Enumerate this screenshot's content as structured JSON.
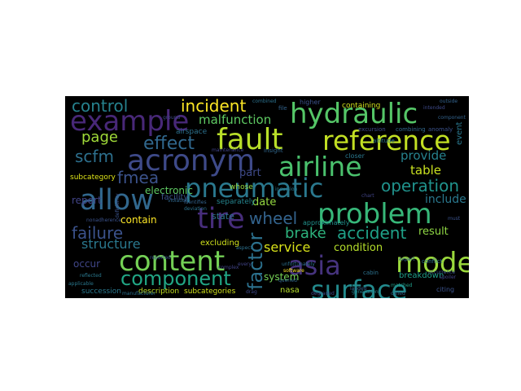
{
  "words": [
    {
      "text": "hydraulic",
      "color": "#55c667"
    },
    {
      "text": "fault",
      "color": "#b8de29"
    },
    {
      "text": "reference",
      "color": "#c2df23"
    },
    {
      "text": "example",
      "color": "#482878"
    },
    {
      "text": "acronym",
      "color": "#3e4a89"
    },
    {
      "text": "airline",
      "color": "#4ac16d"
    },
    {
      "text": "pneumatic",
      "color": "#2a788e"
    },
    {
      "text": "allow",
      "color": "#31688e"
    },
    {
      "text": "problem",
      "color": "#37b779"
    },
    {
      "text": "tire",
      "color": "#472d7b"
    },
    {
      "text": "content",
      "color": "#74d055"
    },
    {
      "text": "mode",
      "color": "#9bd93c"
    },
    {
      "text": "asia",
      "color": "#46337e"
    },
    {
      "text": "surface",
      "color": "#238a8d"
    },
    {
      "text": "component",
      "color": "#21a685"
    },
    {
      "text": "factor",
      "color": "#2c718e"
    },
    {
      "text": "incident",
      "color": "#fde725"
    },
    {
      "text": "control",
      "color": "#26828e"
    },
    {
      "text": "effect",
      "color": "#31688e"
    },
    {
      "text": "page",
      "color": "#a0da39"
    },
    {
      "text": "scfm",
      "color": "#2d708e"
    },
    {
      "text": "fmea",
      "color": "#3b528b"
    },
    {
      "text": "malfunction",
      "color": "#5ec962"
    },
    {
      "text": "operation",
      "color": "#20928c"
    },
    {
      "text": "wheel",
      "color": "#33638d"
    },
    {
      "text": "brake",
      "color": "#2db27d"
    },
    {
      "text": "accident",
      "color": "#1fa188"
    },
    {
      "text": "failure",
      "color": "#3b528b"
    },
    {
      "text": "structure",
      "color": "#2a788e"
    },
    {
      "text": "service",
      "color": "#d8e219"
    },
    {
      "text": "condition",
      "color": "#b5de2b"
    },
    {
      "text": "provide",
      "color": "#26828e"
    },
    {
      "text": "table",
      "color": "#c8e020"
    },
    {
      "text": "include",
      "color": "#2a788e"
    },
    {
      "text": "result",
      "color": "#8fd744"
    },
    {
      "text": "part",
      "color": "#3e4a89"
    },
    {
      "text": "date",
      "color": "#95d840"
    },
    {
      "text": "contain",
      "color": "#fde725"
    },
    {
      "text": "system",
      "color": "#75d054"
    },
    {
      "text": "occur",
      "color": "#404688"
    },
    {
      "text": "excluding",
      "color": "#d0e11c"
    },
    {
      "text": "nasa",
      "color": "#b5de2b"
    },
    {
      "text": "breakdown",
      "color": "#1f9e89"
    },
    {
      "text": "description",
      "color": "#c2df23"
    },
    {
      "text": "subcategories",
      "color": "#d0e11c"
    },
    {
      "text": "succession",
      "color": "#2a788e"
    },
    {
      "text": "electronic",
      "color": "#5ec962"
    },
    {
      "text": "state",
      "color": "#2c728e"
    },
    {
      "text": "report",
      "color": "#414487"
    },
    {
      "text": "facility",
      "color": "#3b528b"
    },
    {
      "text": "separately",
      "color": "#25848e"
    },
    {
      "text": "approximately",
      "color": "#21918c"
    },
    {
      "text": "containing",
      "color": "#d2e21b"
    },
    {
      "text": "event",
      "color": "#2a788e"
    },
    {
      "text": "subcategory",
      "color": "#dde318"
    },
    {
      "text": "airspace",
      "color": "#2c728e"
    },
    {
      "text": "whose",
      "color": "#95d840"
    },
    {
      "text": "insight",
      "color": "#31688e"
    },
    {
      "text": "closer",
      "color": "#2a788e"
    },
    {
      "text": "higher",
      "color": "#3b528b"
    },
    {
      "text": "file",
      "color": "#33638d"
    },
    {
      "text": "software",
      "color": "#fde725"
    },
    {
      "text": "unfortunately",
      "color": "#2c718e"
    },
    {
      "text": "queried",
      "color": "#31688e"
    },
    {
      "text": "citing",
      "color": "#3b528b"
    },
    {
      "text": "conflict",
      "color": "#2c728e"
    },
    {
      "text": "matched",
      "color": "#1f9e89"
    },
    {
      "text": "must",
      "color": "#3b528b"
    },
    {
      "text": "chart",
      "color": "#414487"
    },
    {
      "text": "reflected",
      "color": "#2a788e"
    },
    {
      "text": "violation",
      "color": "#31688e"
    },
    {
      "text": "deviation",
      "color": "#2c728e"
    },
    {
      "text": "deficiency",
      "color": "#3b528b"
    },
    {
      "text": "identifies",
      "color": "#33638d"
    },
    {
      "text": "generation",
      "color": "#26828e"
    },
    {
      "text": "excursion",
      "color": "#3e4a89"
    },
    {
      "text": "altitude",
      "color": "#2a788e"
    },
    {
      "text": "combining",
      "color": "#31688e"
    },
    {
      "text": "anomaly",
      "color": "#3b528b"
    },
    {
      "text": "cabin",
      "color": "#2c728e"
    },
    {
      "text": "expert",
      "color": "#33638d"
    },
    {
      "text": "spoiler",
      "color": "#414487"
    },
    {
      "text": "drag",
      "color": "#3e4a89"
    },
    {
      "text": "incursion",
      "color": "#2a788e"
    },
    {
      "text": "nonadherence",
      "color": "#3b528b"
    },
    {
      "text": "aspect",
      "color": "#2c718e"
    },
    {
      "text": "landed",
      "color": "#33638d"
    },
    {
      "text": "complex",
      "color": "#414487"
    },
    {
      "text": "intended",
      "color": "#3e4a89"
    },
    {
      "text": "reported",
      "color": "#3b528b"
    },
    {
      "text": "combined",
      "color": "#2c728e"
    },
    {
      "text": "outside",
      "color": "#33638d"
    },
    {
      "text": "every",
      "color": "#414487"
    },
    {
      "text": "ground",
      "color": "#3e4a89"
    },
    {
      "text": "applicable",
      "color": "#2a788e"
    },
    {
      "text": "called",
      "color": "#31688e"
    },
    {
      "text": "occurrence",
      "color": "#3b528b"
    },
    {
      "text": "manufacturer",
      "color": "#2c728e"
    },
    {
      "text": "component",
      "color": "#33638d"
    },
    {
      "text": "maintenance",
      "color": "#414487"
    },
    {
      "text": "degraded",
      "color": "#3e4a89"
    }
  ]
}
